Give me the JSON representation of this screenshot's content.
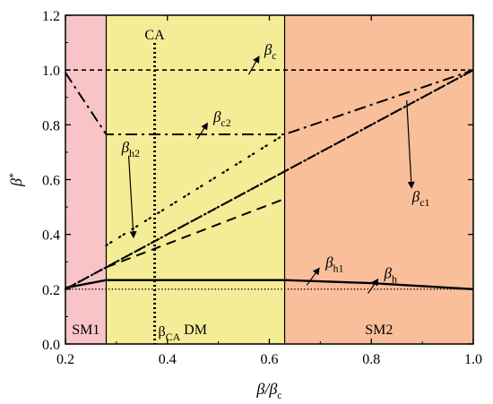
{
  "chart_data": {
    "type": "line",
    "xlabel": "β/βc",
    "ylabel": "β*",
    "xlim": [
      0.2,
      1.0
    ],
    "ylim": [
      0.0,
      1.2
    ],
    "xticks": [
      "0.2",
      "0.4",
      "0.6",
      "0.8",
      "1.0"
    ],
    "yticks": [
      "0.0",
      "0.2",
      "0.4",
      "0.6",
      "0.8",
      "1.0",
      "1.2"
    ],
    "regions": [
      {
        "name": "SM1",
        "from": 0.2,
        "to": 0.28,
        "color": "#f8c4c7"
      },
      {
        "name": "DM",
        "from": 0.28,
        "to": 0.63,
        "color": "#f4ec96"
      },
      {
        "name": "SM2",
        "from": 0.63,
        "to": 1.0,
        "color": "#f9bf9a"
      }
    ],
    "vertical_lines": [
      {
        "label": "CA",
        "axis_label": "βCA",
        "x": 0.375
      }
    ],
    "series": [
      {
        "name": "βc",
        "style": "dashed-fine",
        "x": [
          0.2,
          1.0
        ],
        "y": [
          1.0,
          1.0
        ]
      },
      {
        "name": "βc2",
        "style": "dash-dot",
        "x": [
          0.2,
          0.28,
          0.63,
          1.0
        ],
        "y": [
          0.99,
          0.765,
          0.765,
          1.0
        ]
      },
      {
        "name": "βc1",
        "style": "dashed",
        "x": [
          0.2,
          1.0
        ],
        "y": [
          0.2,
          1.0
        ]
      },
      {
        "name": "βh2",
        "style": "dotted",
        "x": [
          0.2,
          1.0
        ],
        "y": [
          0.2,
          1.0
        ]
      },
      {
        "name": "βh1",
        "style": "solid",
        "x": [
          0.2,
          0.28,
          0.4,
          0.63,
          0.8,
          1.0
        ],
        "y": [
          0.205,
          0.233,
          0.233,
          0.233,
          0.222,
          0.2
        ]
      },
      {
        "name": "βh",
        "style": "dotted-fine",
        "x": [
          0.2,
          1.0
        ],
        "y": [
          0.2,
          0.2
        ]
      }
    ],
    "segments": [
      {
        "style": "dash-dot-dot",
        "x": [
          0.28,
          0.63
        ],
        "y": [
          0.36,
          0.765
        ]
      },
      {
        "style": "dashed",
        "x": [
          0.28,
          0.63
        ],
        "y": [
          0.28,
          0.53
        ]
      }
    ],
    "annotations": [
      {
        "label": "βc",
        "arrow_x": 0.565,
        "text_x": 0.59,
        "text_y": 1.075
      },
      {
        "label": "βc2",
        "arrow_x": 0.465,
        "text_x": 0.49,
        "text_y": 0.83
      },
      {
        "label": "βc1",
        "arrow_x": 0.87,
        "text_x": 0.88,
        "text_y": 0.54
      },
      {
        "label": "βh2",
        "arrow_x": 0.33,
        "text_x": 0.31,
        "text_y": 0.72
      },
      {
        "label": "βh1",
        "arrow_x": 0.68,
        "text_x": 0.71,
        "text_y": 0.3
      },
      {
        "label": "βh",
        "arrow_x": 0.8,
        "text_x": 0.825,
        "text_y": 0.26
      }
    ]
  }
}
